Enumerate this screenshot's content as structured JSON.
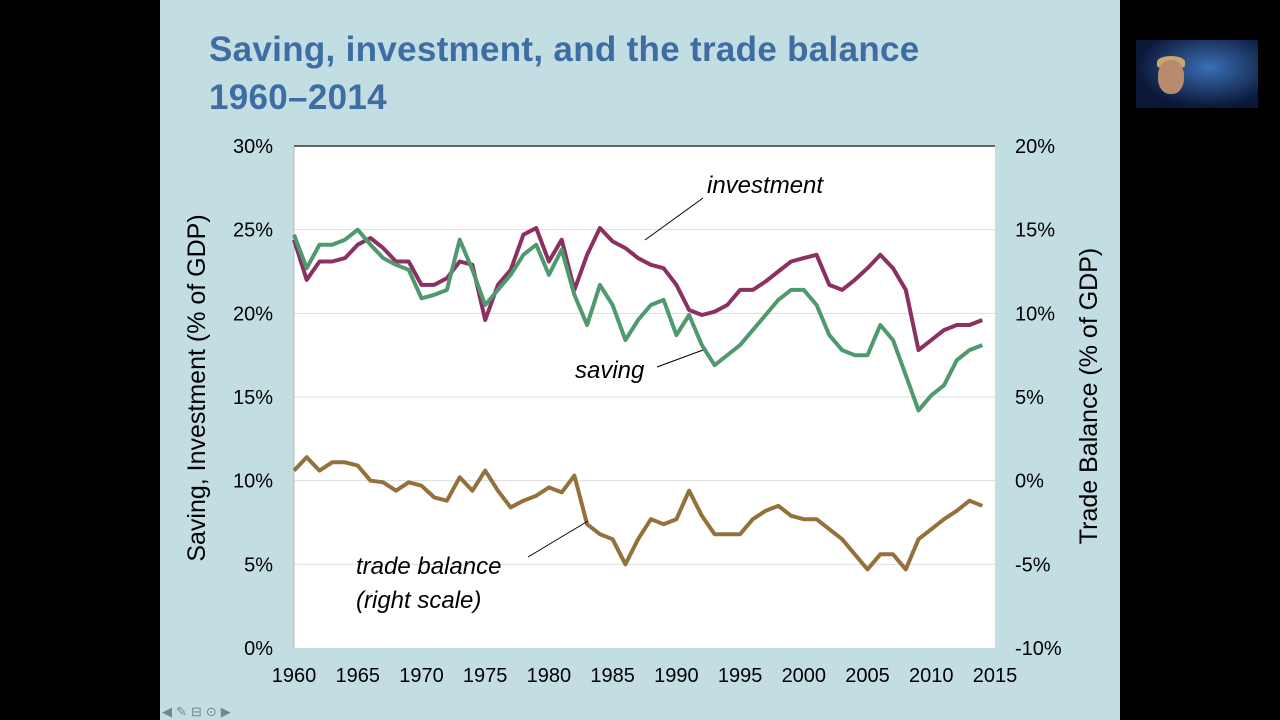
{
  "slide": {
    "title_line1": "Saving, investment, and the trade balance",
    "title_line2": "1960–2014"
  },
  "nav_icons": [
    "arrow-left-icon",
    "pen-icon",
    "slide-icon",
    "more-icon",
    "arrow-right-icon"
  ],
  "chart_data": {
    "type": "line",
    "xlabel": "",
    "ylabel": "Saving, Investment (% of GDP)",
    "y2label": "Trade Balance (% of GDP)",
    "xlim": [
      1960,
      2015
    ],
    "ylim": [
      0,
      30
    ],
    "y2lim": [
      -10,
      20
    ],
    "xticks": [
      "1960",
      "1965",
      "1970",
      "1975",
      "1980",
      "1985",
      "1990",
      "1995",
      "2000",
      "2005",
      "2010",
      "2015"
    ],
    "yticks": [
      "0%",
      "5%",
      "10%",
      "15%",
      "20%",
      "25%",
      "30%"
    ],
    "y2ticks": [
      "-10%",
      "-5%",
      "0%",
      "5%",
      "10%",
      "15%",
      "20%"
    ],
    "grid": true,
    "annotations": {
      "investment": "investment",
      "saving": "saving",
      "trade1": "trade balance",
      "trade2": "(right scale)"
    },
    "x": [
      1960,
      1961,
      1962,
      1963,
      1964,
      1965,
      1966,
      1967,
      1968,
      1969,
      1970,
      1971,
      1972,
      1973,
      1974,
      1975,
      1976,
      1977,
      1978,
      1979,
      1980,
      1981,
      1982,
      1983,
      1984,
      1985,
      1986,
      1987,
      1988,
      1989,
      1990,
      1991,
      1992,
      1993,
      1994,
      1995,
      1996,
      1997,
      1998,
      1999,
      2000,
      2001,
      2002,
      2003,
      2004,
      2005,
      2006,
      2007,
      2008,
      2009,
      2010,
      2011,
      2012,
      2013,
      2014
    ],
    "series": [
      {
        "name": "investment",
        "axis": "left",
        "color": "#8b3060",
        "values": [
          24.4,
          22.0,
          23.1,
          23.1,
          23.3,
          24.1,
          24.5,
          23.9,
          23.1,
          23.1,
          21.7,
          21.7,
          22.1,
          23.1,
          22.9,
          19.6,
          21.7,
          22.6,
          24.7,
          25.1,
          23.1,
          24.4,
          21.4,
          23.5,
          25.1,
          24.3,
          23.9,
          23.3,
          22.9,
          22.7,
          21.7,
          20.2,
          19.9,
          20.1,
          20.5,
          21.4,
          21.4,
          21.9,
          22.5,
          23.1,
          23.3,
          23.5,
          21.7,
          21.4,
          22.0,
          22.7,
          23.5,
          22.7,
          21.4,
          17.8,
          18.4,
          19.0,
          19.3,
          19.3,
          19.6
        ]
      },
      {
        "name": "saving",
        "axis": "left",
        "color": "#4e9a6e",
        "values": [
          24.7,
          22.7,
          24.1,
          24.1,
          24.4,
          25.0,
          24.1,
          23.3,
          22.9,
          22.6,
          20.9,
          21.1,
          21.4,
          24.4,
          22.6,
          20.5,
          21.4,
          22.3,
          23.5,
          24.1,
          22.3,
          23.8,
          21.1,
          19.3,
          21.7,
          20.5,
          18.4,
          19.6,
          20.5,
          20.8,
          18.7,
          19.9,
          18.1,
          16.9,
          17.5,
          18.1,
          19.0,
          19.9,
          20.8,
          21.4,
          21.4,
          20.5,
          18.7,
          17.8,
          17.5,
          17.5,
          19.3,
          18.4,
          16.3,
          14.2,
          15.1,
          15.7,
          17.2,
          17.8,
          18.1
        ]
      },
      {
        "name": "trade balance",
        "axis": "right",
        "color": "#94703a",
        "values": [
          0.6,
          1.4,
          0.6,
          1.1,
          1.1,
          0.9,
          0.0,
          -0.1,
          -0.6,
          -0.1,
          -0.3,
          -1.0,
          -1.2,
          0.2,
          -0.6,
          0.6,
          -0.6,
          -1.6,
          -1.2,
          -0.9,
          -0.4,
          -0.7,
          0.3,
          -2.6,
          -3.2,
          -3.5,
          -5.0,
          -3.5,
          -2.3,
          -2.6,
          -2.3,
          -0.6,
          -2.1,
          -3.2,
          -3.2,
          -3.2,
          -2.3,
          -1.8,
          -1.5,
          -2.1,
          -2.3,
          -2.3,
          -2.9,
          -3.5,
          -4.4,
          -5.3,
          -4.4,
          -4.4,
          -5.3,
          -3.5,
          -2.9,
          -2.3,
          -1.8,
          -1.2,
          -1.5
        ]
      }
    ]
  }
}
